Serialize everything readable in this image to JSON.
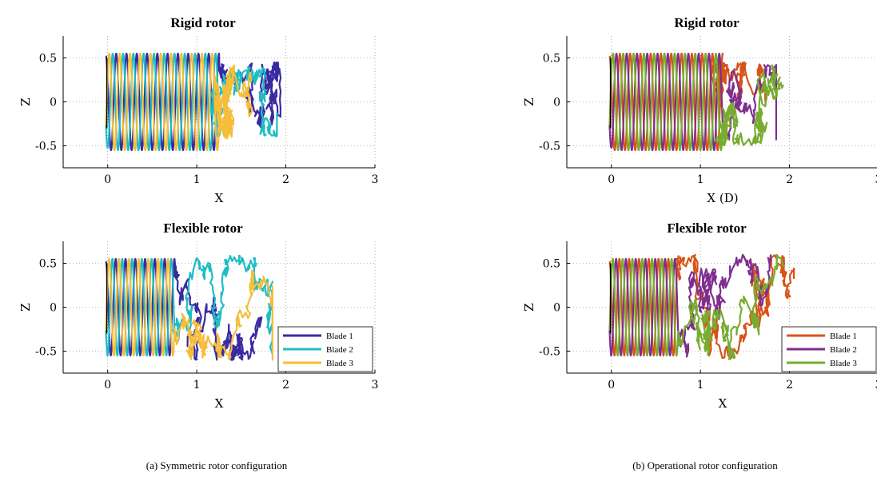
{
  "chart_data": [
    {
      "type": "line",
      "title": "Rigid rotor",
      "xlabel": "X",
      "ylabel": "Z",
      "xlim": [
        -0.5,
        3
      ],
      "ylim": [
        -0.75,
        0.75
      ],
      "xticks": [
        "0",
        "1",
        "2",
        "3"
      ],
      "yticks": [
        "-0.5",
        "0",
        "0.5"
      ],
      "grid": true,
      "legend": null,
      "series": [
        {
          "color": "#3a2aa0",
          "phase_deg": 0,
          "x_start": -0.02,
          "x_end": 1.28,
          "regular_end": 1.25,
          "amplitude": 0.55,
          "turns": 11,
          "wake_end": 1.95,
          "wake_amp": 0.35,
          "seed": 1
        },
        {
          "color": "#1fbcc4",
          "phase_deg": 120,
          "x_start": -0.02,
          "x_end": 1.28,
          "regular_end": 1.25,
          "amplitude": 0.55,
          "turns": 11,
          "wake_end": 1.9,
          "wake_amp": 0.3,
          "seed": 2
        },
        {
          "color": "#f5bd3a",
          "phase_deg": 240,
          "x_start": -0.02,
          "x_end": 1.28,
          "regular_end": 1.25,
          "amplitude": 0.55,
          "turns": 11,
          "wake_end": 1.85,
          "wake_amp": 0.32,
          "seed": 3
        }
      ]
    },
    {
      "type": "line",
      "title": "Rigid rotor",
      "xlabel": "X (D)",
      "ylabel": "Z",
      "xlim": [
        -0.5,
        3
      ],
      "ylim": [
        -0.75,
        0.75
      ],
      "xticks": [
        "0",
        "1",
        "2",
        "3"
      ],
      "yticks": [
        "-0.5",
        "0",
        "0.5"
      ],
      "grid": true,
      "legend": null,
      "series": [
        {
          "color": "#d95319",
          "phase_deg": 0,
          "x_start": -0.02,
          "x_end": 1.3,
          "regular_end": 1.25,
          "amplitude": 0.55,
          "turns": 11,
          "wake_end": 1.95,
          "wake_amp": 0.35,
          "seed": 4
        },
        {
          "color": "#7e2f8e",
          "phase_deg": 120,
          "x_start": -0.02,
          "x_end": 1.3,
          "regular_end": 1.25,
          "amplitude": 0.55,
          "turns": 11,
          "wake_end": 1.85,
          "wake_amp": 0.33,
          "seed": 5
        },
        {
          "color": "#77ac30",
          "phase_deg": 240,
          "x_start": -0.02,
          "x_end": 1.3,
          "regular_end": 1.25,
          "amplitude": 0.55,
          "turns": 11,
          "wake_end": 2.0,
          "wake_amp": 0.4,
          "seed": 6
        }
      ]
    },
    {
      "type": "line",
      "title": "Flexible rotor",
      "xlabel": "X",
      "ylabel": "Z",
      "xlim": [
        -0.5,
        3
      ],
      "ylim": [
        -0.75,
        0.75
      ],
      "xticks": [
        "0",
        "1",
        "2",
        "3"
      ],
      "yticks": [
        "-0.5",
        "0",
        "0.5"
      ],
      "grid": true,
      "legend": {
        "position": "bottom-right",
        "entries": [
          "Blade 1",
          "Blade 2",
          "Blade 3"
        ]
      },
      "series": [
        {
          "name": "Blade 1",
          "color": "#3a2aa0",
          "phase_deg": 0,
          "x_start": -0.02,
          "regular_end": 0.75,
          "amplitude": 0.55,
          "turns": 7,
          "wake_end": 1.9,
          "wake_amp": 0.5,
          "seed": 7
        },
        {
          "name": "Blade 2",
          "color": "#1fbcc4",
          "phase_deg": 120,
          "x_start": -0.02,
          "regular_end": 0.75,
          "amplitude": 0.55,
          "turns": 7,
          "wake_end": 1.85,
          "wake_amp": 0.5,
          "seed": 8
        },
        {
          "name": "Blade 3",
          "color": "#f5bd3a",
          "phase_deg": 240,
          "x_start": -0.02,
          "regular_end": 0.75,
          "amplitude": 0.55,
          "turns": 7,
          "wake_end": 1.85,
          "wake_amp": 0.5,
          "seed": 9
        }
      ]
    },
    {
      "type": "line",
      "title": "Flexible rotor",
      "xlabel": "X",
      "ylabel": "Z",
      "xlim": [
        -0.5,
        3
      ],
      "ylim": [
        -0.75,
        0.75
      ],
      "xticks": [
        "0",
        "1",
        "2",
        "3"
      ],
      "yticks": [
        "-0.5",
        "0",
        "0.5"
      ],
      "grid": true,
      "legend": {
        "position": "bottom-right",
        "entries": [
          "Blade 1",
          "Blade 2",
          "Blade 3"
        ]
      },
      "series": [
        {
          "name": "Blade 1",
          "color": "#d95319",
          "phase_deg": 0,
          "x_start": -0.02,
          "regular_end": 0.75,
          "amplitude": 0.55,
          "turns": 7,
          "wake_end": 2.05,
          "wake_amp": 0.5,
          "seed": 10
        },
        {
          "name": "Blade 2",
          "color": "#7e2f8e",
          "phase_deg": 120,
          "x_start": -0.02,
          "regular_end": 0.75,
          "amplitude": 0.55,
          "turns": 7,
          "wake_end": 1.85,
          "wake_amp": 0.5,
          "seed": 11
        },
        {
          "name": "Blade 3",
          "color": "#77ac30",
          "phase_deg": 240,
          "x_start": -0.02,
          "regular_end": 0.75,
          "amplitude": 0.55,
          "turns": 7,
          "wake_end": 1.95,
          "wake_amp": 0.5,
          "seed": 12
        }
      ]
    }
  ],
  "captions": {
    "left": "(a) Symmetric rotor configuration",
    "right": "(b) Operational rotor configuration"
  }
}
